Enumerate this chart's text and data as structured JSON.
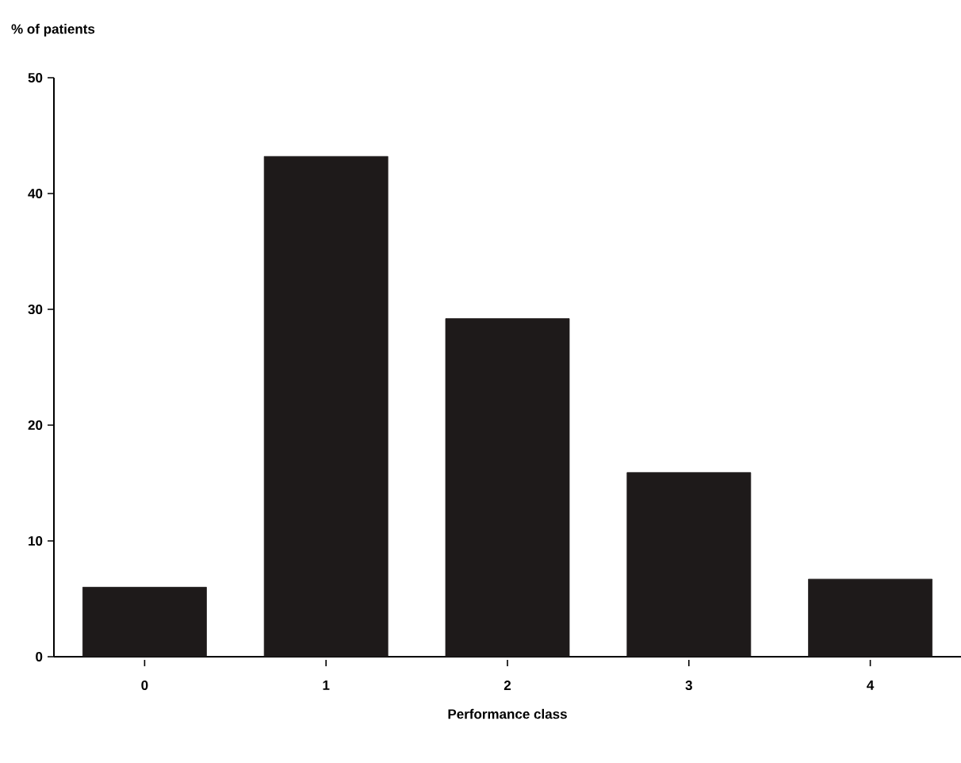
{
  "chart_data": {
    "type": "bar",
    "xlabel": "Performance class",
    "ylabel": "% of patients",
    "categories": [
      "0",
      "1",
      "2",
      "3",
      "4"
    ],
    "values": [
      6,
      43.2,
      29.2,
      15.9,
      6.7
    ],
    "color": "#1e1a1a",
    "ylim": [
      0,
      50
    ],
    "yticks": [
      0,
      10,
      20,
      30,
      40,
      50
    ],
    "grid": false
  }
}
